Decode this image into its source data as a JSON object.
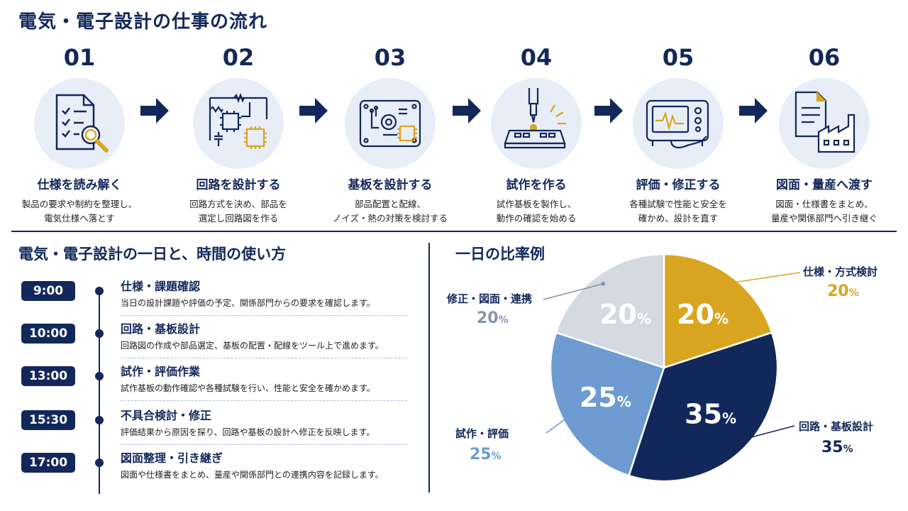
{
  "title": "電気・電子設計の仕事の流れ",
  "colors": {
    "navy": "#13285a",
    "gold": "#d9a521",
    "light_blue": "#6d9bd2",
    "gray": "#d4d9e2"
  },
  "steps": [
    {
      "num": "01",
      "title": "仕様を読み解く",
      "desc1": "製品の要求や制約を整理し、",
      "desc2": "電気仕様へ落とす",
      "icon": "document-search-icon"
    },
    {
      "num": "02",
      "title": "回路を設計する",
      "desc1": "回路方式を決め、部品を",
      "desc2": "選定し回路図を作る",
      "icon": "circuit-schematic-icon"
    },
    {
      "num": "03",
      "title": "基板を設計する",
      "desc1": "部品配置と配線、",
      "desc2": "ノイズ・熱の対策を検討する",
      "icon": "circuit-board-icon"
    },
    {
      "num": "04",
      "title": "試作を作る",
      "desc1": "試作基板を製作し、",
      "desc2": "動作の確認を始める",
      "icon": "soldering-icon"
    },
    {
      "num": "05",
      "title": "評価・修正する",
      "desc1": "各種試験で性能と安全を",
      "desc2": "確かめ、設計を直す",
      "icon": "oscilloscope-icon"
    },
    {
      "num": "06",
      "title": "図面・量産へ渡す",
      "desc1": "図面・仕様書をまとめ、",
      "desc2": "量産や関係部門へ引き継ぐ",
      "icon": "factory-document-icon"
    }
  ],
  "day": {
    "title": "電気・電子設計の一日と、時間の使い方",
    "items": [
      {
        "time": "9:00",
        "title": "仕様・課題確認",
        "desc": "当日の設計課題や評価の予定、関係部門からの要求を確認します。"
      },
      {
        "time": "10:00",
        "title": "回路・基板設計",
        "desc": "回路図の作成や部品選定、基板の配置・配線をツール上で進めます。"
      },
      {
        "time": "13:00",
        "title": "試作・評価作業",
        "desc": "試作基板の動作確認や各種試験を行い、性能と安全を確かめます。"
      },
      {
        "time": "15:30",
        "title": "不具合検討・修正",
        "desc": "評価結果から原因を探り、回路や基板の設計へ修正を反映します。"
      },
      {
        "time": "17:00",
        "title": "図面整理・引き継ぎ",
        "desc": "図面や仕様書をまとめ、量産や関係部門との連携内容を記録します。"
      }
    ]
  },
  "ratio_title": "一日の比率例",
  "chart_data": {
    "type": "pie",
    "title": "一日の比率例",
    "series": [
      {
        "name": "仕様・方式検討",
        "value": 20,
        "label": "20",
        "unit": "%",
        "color": "#d9a521"
      },
      {
        "name": "回路・基板設計",
        "value": 35,
        "label": "35",
        "unit": "%",
        "color": "#13285a"
      },
      {
        "name": "試作・評価",
        "value": 25,
        "label": "25",
        "unit": "%",
        "color": "#6d9bd2"
      },
      {
        "name": "修正・図面・連携",
        "value": 20,
        "label": "20",
        "unit": "%",
        "color": "#d4d9e2"
      }
    ]
  }
}
